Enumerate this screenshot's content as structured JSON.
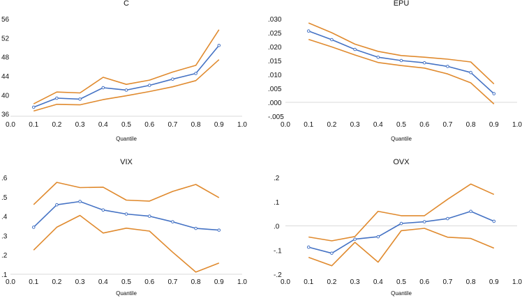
{
  "colors": {
    "estimate": "#4472C4",
    "band": "#E08A2E",
    "axis": "#D9D9D9",
    "text": "#111111"
  },
  "chart_data": [
    {
      "type": "line",
      "title": "C",
      "xlabel": "Quantile",
      "ylabel": "",
      "xlim": [
        0.0,
        1.0
      ],
      "ylim": [
        35.5,
        56
      ],
      "x_ticks": [
        "0.0",
        "0.1",
        "0.2",
        "0.3",
        "0.4",
        "0.5",
        "0.6",
        "0.7",
        "0.8",
        "0.9",
        "1.0"
      ],
      "y_ticks": [
        {
          "v": 36,
          "label": "36"
        },
        {
          "v": 40,
          "label": "40"
        },
        {
          "v": 44,
          "label": "44"
        },
        {
          "v": 48,
          "label": "48"
        },
        {
          "v": 52,
          "label": "52"
        },
        {
          "v": 56,
          "label": "56"
        }
      ],
      "x": [
        0.1,
        0.2,
        0.3,
        0.4,
        0.5,
        0.6,
        0.7,
        0.8,
        0.9
      ],
      "series": [
        {
          "name": "upper",
          "values": [
            38.1,
            40.6,
            40.4,
            43.7,
            42.2,
            43.1,
            44.8,
            46.2,
            53.7
          ]
        },
        {
          "name": "estimate",
          "values": [
            37.4,
            39.3,
            39.1,
            41.5,
            41.0,
            42.0,
            43.3,
            44.5,
            50.4
          ]
        },
        {
          "name": "lower",
          "values": [
            36.6,
            38.0,
            37.9,
            39.0,
            39.8,
            40.7,
            41.7,
            43.0,
            47.4
          ]
        }
      ]
    },
    {
      "type": "line",
      "title": "EPU",
      "xlabel": "Quantile",
      "ylabel": "",
      "xlim": [
        0.0,
        1.0
      ],
      "ylim": [
        -0.005,
        0.03
      ],
      "x_ticks": [
        "0.0",
        "0.1",
        "0.2",
        "0.3",
        "0.4",
        "0.5",
        "0.6",
        "0.7",
        "0.8",
        "0.9",
        "1.0"
      ],
      "y_ticks": [
        {
          "v": 0.03,
          "label": ".030"
        },
        {
          "v": 0.025,
          "label": ".025"
        },
        {
          "v": 0.02,
          "label": ".020"
        },
        {
          "v": 0.015,
          "label": ".015"
        },
        {
          "v": 0.01,
          "label": ".010"
        },
        {
          "v": 0.005,
          "label": ".005"
        },
        {
          "v": 0.0,
          "label": ".000"
        },
        {
          "v": -0.005,
          "label": "-.005"
        }
      ],
      "x": [
        0.1,
        0.2,
        0.3,
        0.4,
        0.5,
        0.6,
        0.7,
        0.8,
        0.9
      ],
      "series": [
        {
          "name": "upper",
          "values": [
            0.0285,
            0.025,
            0.0209,
            0.0183,
            0.0168,
            0.0162,
            0.0155,
            0.0145,
            0.0066
          ]
        },
        {
          "name": "estimate",
          "values": [
            0.0256,
            0.0225,
            0.019,
            0.0162,
            0.015,
            0.0142,
            0.0129,
            0.0107,
            0.0031
          ]
        },
        {
          "name": "lower",
          "values": [
            0.0226,
            0.0199,
            0.017,
            0.0143,
            0.0132,
            0.0123,
            0.0102,
            0.007,
            -0.0006
          ]
        }
      ]
    },
    {
      "type": "line",
      "title": "VIX",
      "xlabel": "Quantile",
      "ylabel": "",
      "xlim": [
        0.0,
        1.0
      ],
      "ylim": [
        0.1,
        0.6
      ],
      "x_ticks": [
        "0.0",
        "0.1",
        "0.2",
        "0.3",
        "0.4",
        "0.5",
        "0.6",
        "0.7",
        "0.8",
        "0.9",
        "1.0"
      ],
      "y_ticks": [
        {
          "v": 0.1,
          "label": ".1"
        },
        {
          "v": 0.2,
          "label": ".2"
        },
        {
          "v": 0.3,
          "label": ".3"
        },
        {
          "v": 0.4,
          "label": ".4"
        },
        {
          "v": 0.5,
          "label": ".5"
        },
        {
          "v": 0.6,
          "label": ".6"
        }
      ],
      "x": [
        0.1,
        0.2,
        0.3,
        0.4,
        0.5,
        0.6,
        0.7,
        0.8,
        0.9
      ],
      "series": [
        {
          "name": "upper",
          "values": [
            0.46,
            0.575,
            0.548,
            0.55,
            0.483,
            0.478,
            0.528,
            0.564,
            0.496
          ]
        },
        {
          "name": "estimate",
          "values": [
            0.343,
            0.459,
            0.476,
            0.432,
            0.411,
            0.4,
            0.371,
            0.337,
            0.328
          ]
        },
        {
          "name": "lower",
          "values": [
            0.225,
            0.343,
            0.404,
            0.313,
            0.338,
            0.323,
            0.214,
            0.111,
            0.158
          ]
        }
      ]
    },
    {
      "type": "line",
      "title": "OVX",
      "xlabel": "Quantile",
      "ylabel": "",
      "xlim": [
        0.0,
        1.0
      ],
      "ylim": [
        -0.2,
        0.2
      ],
      "x_ticks": [
        "0.0",
        "0.1",
        "0.2",
        "0.3",
        "0.4",
        "0.5",
        "0.6",
        "0.7",
        "0.8",
        "0.9",
        "1.0"
      ],
      "y_ticks": [
        {
          "v": 0.2,
          "label": ".2"
        },
        {
          "v": 0.1,
          "label": ".1"
        },
        {
          "v": 0.0,
          "label": ".0"
        },
        {
          "v": -0.1,
          "label": "-.1"
        },
        {
          "v": -0.2,
          "label": "-.2"
        }
      ],
      "x": [
        0.1,
        0.2,
        0.3,
        0.4,
        0.5,
        0.6,
        0.7,
        0.8,
        0.9
      ],
      "series": [
        {
          "name": "upper",
          "values": [
            -0.046,
            -0.062,
            -0.044,
            0.06,
            0.042,
            0.042,
            0.11,
            0.173,
            0.13
          ]
        },
        {
          "name": "estimate",
          "values": [
            -0.088,
            -0.113,
            -0.055,
            -0.045,
            0.01,
            0.017,
            0.03,
            0.06,
            0.019
          ]
        },
        {
          "name": "lower",
          "values": [
            -0.13,
            -0.165,
            -0.068,
            -0.15,
            -0.02,
            -0.01,
            -0.047,
            -0.052,
            -0.092
          ]
        }
      ]
    }
  ]
}
